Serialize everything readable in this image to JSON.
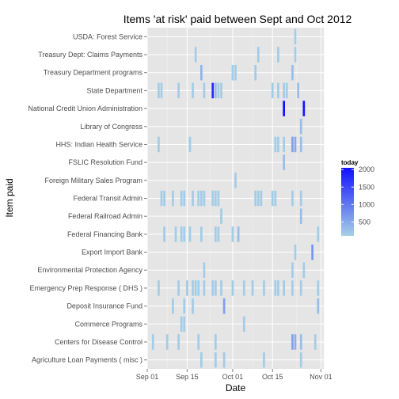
{
  "chart_data": {
    "type": "tile-heatmap",
    "title": "Items 'at risk' paid between Sept and Oct 2012",
    "xlabel": "Date",
    "ylabel": "Item paid",
    "x_range": [
      "2012-09-01",
      "2012-11-02"
    ],
    "x_ticks": [
      {
        "date": "2012-09-01",
        "label": "Sep 01"
      },
      {
        "date": "2012-09-15",
        "label": "Sep 15"
      },
      {
        "date": "2012-10-01",
        "label": "Oct 01"
      },
      {
        "date": "2012-10-15",
        "label": "Oct 15"
      },
      {
        "date": "2012-11-01",
        "label": "Nov 01"
      }
    ],
    "categories": [
      "USDA: Forest Service",
      "Treasury Dept: Claims Payments",
      "Treasury Department programs",
      "State Department",
      "National Credit Union Administration",
      "Library of Congress",
      "HHS: Indian Health Service",
      "FSLIC Resolution Fund",
      "Foreign Military Sales Program",
      "Federal Transit Admin",
      "Federal Railroad Admin",
      "Federal Financing Bank",
      "Export Import Bank",
      "Environmental Protection Agency",
      "Emergency Prep Response ( DHS )",
      "Deposit Insurance Fund",
      "Commerce Programs",
      "Centers for Disease Control",
      "Agriculture Loan Payments ( misc )"
    ],
    "legend": {
      "title": "today",
      "position": "right",
      "domain": [
        100,
        2050
      ],
      "breaks": [
        500,
        1000,
        1500,
        2000
      ],
      "low_color": "#a6d1e6",
      "high_color": "#1010ff"
    },
    "grid": true,
    "panel_color": "#e5e5e5",
    "points": [
      {
        "item": "USDA: Forest Service",
        "date": "2012-10-23",
        "today": 150
      },
      {
        "item": "Treasury Dept: Claims Payments",
        "date": "2012-09-18",
        "today": 150
      },
      {
        "item": "Treasury Dept: Claims Payments",
        "date": "2012-10-10",
        "today": 150
      },
      {
        "item": "Treasury Dept: Claims Payments",
        "date": "2012-10-17",
        "today": 150
      },
      {
        "item": "Treasury Dept: Claims Payments",
        "date": "2012-10-23",
        "today": 150
      },
      {
        "item": "Treasury Department programs",
        "date": "2012-09-20",
        "today": 400
      },
      {
        "item": "Treasury Department programs",
        "date": "2012-10-01",
        "today": 150
      },
      {
        "item": "Treasury Department programs",
        "date": "2012-10-02",
        "today": 150
      },
      {
        "item": "Treasury Department programs",
        "date": "2012-10-09",
        "today": 150
      },
      {
        "item": "Treasury Department programs",
        "date": "2012-10-22",
        "today": 300
      },
      {
        "item": "State Department",
        "date": "2012-09-05",
        "today": 150
      },
      {
        "item": "State Department",
        "date": "2012-09-06",
        "today": 150
      },
      {
        "item": "State Department",
        "date": "2012-09-12",
        "today": 150
      },
      {
        "item": "State Department",
        "date": "2012-09-17",
        "today": 150
      },
      {
        "item": "State Department",
        "date": "2012-09-21",
        "today": 150
      },
      {
        "item": "State Department",
        "date": "2012-09-24",
        "today": 1800
      },
      {
        "item": "State Department",
        "date": "2012-09-25",
        "today": 300
      },
      {
        "item": "State Department",
        "date": "2012-09-26",
        "today": 150
      },
      {
        "item": "State Department",
        "date": "2012-09-27",
        "today": 150
      },
      {
        "item": "State Department",
        "date": "2012-10-15",
        "today": 150
      },
      {
        "item": "State Department",
        "date": "2012-10-17",
        "today": 150
      },
      {
        "item": "State Department",
        "date": "2012-10-19",
        "today": 150
      },
      {
        "item": "State Department",
        "date": "2012-10-20",
        "today": 150
      },
      {
        "item": "State Department",
        "date": "2012-10-24",
        "today": 300
      },
      {
        "item": "National Credit Union Administration",
        "date": "2012-10-19",
        "today": 2050
      },
      {
        "item": "National Credit Union Administration",
        "date": "2012-10-26",
        "today": 2000
      },
      {
        "item": "Library of Congress",
        "date": "2012-10-25",
        "today": 300
      },
      {
        "item": "HHS: Indian Health Service",
        "date": "2012-09-05",
        "today": 150
      },
      {
        "item": "HHS: Indian Health Service",
        "date": "2012-09-16",
        "today": 150
      },
      {
        "item": "HHS: Indian Health Service",
        "date": "2012-10-16",
        "today": 150
      },
      {
        "item": "HHS: Indian Health Service",
        "date": "2012-10-17",
        "today": 150
      },
      {
        "item": "HHS: Indian Health Service",
        "date": "2012-10-19",
        "today": 150
      },
      {
        "item": "HHS: Indian Health Service",
        "date": "2012-10-22",
        "today": 600
      },
      {
        "item": "HHS: Indian Health Service",
        "date": "2012-10-23",
        "today": 500
      },
      {
        "item": "HHS: Indian Health Service",
        "date": "2012-10-25",
        "today": 300
      },
      {
        "item": "FSLIC Resolution Fund",
        "date": "2012-10-19",
        "today": 300
      },
      {
        "item": "Foreign Military Sales Program",
        "date": "2012-10-02",
        "today": 150
      },
      {
        "item": "Federal Transit Admin",
        "date": "2012-09-06",
        "today": 150
      },
      {
        "item": "Federal Transit Admin",
        "date": "2012-09-07",
        "today": 150
      },
      {
        "item": "Federal Transit Admin",
        "date": "2012-09-10",
        "today": 150
      },
      {
        "item": "Federal Transit Admin",
        "date": "2012-09-13",
        "today": 150
      },
      {
        "item": "Federal Transit Admin",
        "date": "2012-09-14",
        "today": 150
      },
      {
        "item": "Federal Transit Admin",
        "date": "2012-09-17",
        "today": 150
      },
      {
        "item": "Federal Transit Admin",
        "date": "2012-09-19",
        "today": 150
      },
      {
        "item": "Federal Transit Admin",
        "date": "2012-09-20",
        "today": 150
      },
      {
        "item": "Federal Transit Admin",
        "date": "2012-09-21",
        "today": 150
      },
      {
        "item": "Federal Transit Admin",
        "date": "2012-09-24",
        "today": 150
      },
      {
        "item": "Federal Transit Admin",
        "date": "2012-09-25",
        "today": 150
      },
      {
        "item": "Federal Transit Admin",
        "date": "2012-09-26",
        "today": 150
      },
      {
        "item": "Federal Transit Admin",
        "date": "2012-10-09",
        "today": 150
      },
      {
        "item": "Federal Transit Admin",
        "date": "2012-10-10",
        "today": 150
      },
      {
        "item": "Federal Transit Admin",
        "date": "2012-10-11",
        "today": 150
      },
      {
        "item": "Federal Transit Admin",
        "date": "2012-10-15",
        "today": 150
      },
      {
        "item": "Federal Transit Admin",
        "date": "2012-10-16",
        "today": 150
      },
      {
        "item": "Federal Transit Admin",
        "date": "2012-10-22",
        "today": 150
      },
      {
        "item": "Federal Transit Admin",
        "date": "2012-10-25",
        "today": 150
      },
      {
        "item": "Federal Railroad Admin",
        "date": "2012-09-27",
        "today": 150
      },
      {
        "item": "Federal Railroad Admin",
        "date": "2012-10-25",
        "today": 300
      },
      {
        "item": "Federal Financing Bank",
        "date": "2012-09-07",
        "today": 150
      },
      {
        "item": "Federal Financing Bank",
        "date": "2012-09-11",
        "today": 150
      },
      {
        "item": "Federal Financing Bank",
        "date": "2012-09-13",
        "today": 150
      },
      {
        "item": "Federal Financing Bank",
        "date": "2012-09-14",
        "today": 150
      },
      {
        "item": "Federal Financing Bank",
        "date": "2012-09-16",
        "today": 150
      },
      {
        "item": "Federal Financing Bank",
        "date": "2012-09-20",
        "today": 150
      },
      {
        "item": "Federal Financing Bank",
        "date": "2012-09-25",
        "today": 150
      },
      {
        "item": "Federal Financing Bank",
        "date": "2012-09-26",
        "today": 150
      },
      {
        "item": "Federal Financing Bank",
        "date": "2012-10-01",
        "today": 150
      },
      {
        "item": "Federal Financing Bank",
        "date": "2012-10-03",
        "today": 300
      },
      {
        "item": "Federal Financing Bank",
        "date": "2012-10-31",
        "today": 150
      },
      {
        "item": "Export Import Bank",
        "date": "2012-10-23",
        "today": 150
      },
      {
        "item": "Export Import Bank",
        "date": "2012-10-29",
        "today": 700
      },
      {
        "item": "Environmental Protection Agency",
        "date": "2012-09-21",
        "today": 150
      },
      {
        "item": "Environmental Protection Agency",
        "date": "2012-10-22",
        "today": 150
      },
      {
        "item": "Environmental Protection Agency",
        "date": "2012-10-26",
        "today": 150
      },
      {
        "item": "Emergency Prep Response ( DHS )",
        "date": "2012-09-05",
        "today": 150
      },
      {
        "item": "Emergency Prep Response ( DHS )",
        "date": "2012-09-12",
        "today": 150
      },
      {
        "item": "Emergency Prep Response ( DHS )",
        "date": "2012-09-15",
        "today": 150
      },
      {
        "item": "Emergency Prep Response ( DHS )",
        "date": "2012-09-17",
        "today": 150
      },
      {
        "item": "Emergency Prep Response ( DHS )",
        "date": "2012-09-18",
        "today": 150
      },
      {
        "item": "Emergency Prep Response ( DHS )",
        "date": "2012-09-19",
        "today": 150
      },
      {
        "item": "Emergency Prep Response ( DHS )",
        "date": "2012-09-21",
        "today": 150
      },
      {
        "item": "Emergency Prep Response ( DHS )",
        "date": "2012-09-24",
        "today": 150
      },
      {
        "item": "Emergency Prep Response ( DHS )",
        "date": "2012-09-25",
        "today": 150
      },
      {
        "item": "Emergency Prep Response ( DHS )",
        "date": "2012-09-27",
        "today": 150
      },
      {
        "item": "Emergency Prep Response ( DHS )",
        "date": "2012-10-01",
        "today": 150
      },
      {
        "item": "Emergency Prep Response ( DHS )",
        "date": "2012-10-05",
        "today": 150
      },
      {
        "item": "Emergency Prep Response ( DHS )",
        "date": "2012-10-08",
        "today": 150
      },
      {
        "item": "Emergency Prep Response ( DHS )",
        "date": "2012-10-12",
        "today": 150
      },
      {
        "item": "Emergency Prep Response ( DHS )",
        "date": "2012-10-16",
        "today": 150
      },
      {
        "item": "Emergency Prep Response ( DHS )",
        "date": "2012-10-17",
        "today": 150
      },
      {
        "item": "Emergency Prep Response ( DHS )",
        "date": "2012-10-19",
        "today": 150
      },
      {
        "item": "Emergency Prep Response ( DHS )",
        "date": "2012-10-22",
        "today": 150
      },
      {
        "item": "Emergency Prep Response ( DHS )",
        "date": "2012-10-25",
        "today": 150
      },
      {
        "item": "Emergency Prep Response ( DHS )",
        "date": "2012-10-31",
        "today": 150
      },
      {
        "item": "Deposit Insurance Fund",
        "date": "2012-09-10",
        "today": 150
      },
      {
        "item": "Deposit Insurance Fund",
        "date": "2012-09-14",
        "today": 150
      },
      {
        "item": "Deposit Insurance Fund",
        "date": "2012-09-17",
        "today": 150
      },
      {
        "item": "Deposit Insurance Fund",
        "date": "2012-09-28",
        "today": 600
      },
      {
        "item": "Deposit Insurance Fund",
        "date": "2012-10-31",
        "today": 300
      },
      {
        "item": "Commerce Programs",
        "date": "2012-09-13",
        "today": 150
      },
      {
        "item": "Commerce Programs",
        "date": "2012-09-14",
        "today": 150
      },
      {
        "item": "Commerce Programs",
        "date": "2012-10-05",
        "today": 150
      },
      {
        "item": "Centers for Disease Control",
        "date": "2012-09-03",
        "today": 150
      },
      {
        "item": "Centers for Disease Control",
        "date": "2012-09-08",
        "today": 150
      },
      {
        "item": "Centers for Disease Control",
        "date": "2012-09-12",
        "today": 150
      },
      {
        "item": "Centers for Disease Control",
        "date": "2012-09-19",
        "today": 150
      },
      {
        "item": "Centers for Disease Control",
        "date": "2012-09-25",
        "today": 150
      },
      {
        "item": "Centers for Disease Control",
        "date": "2012-10-22",
        "today": 600
      },
      {
        "item": "Centers for Disease Control",
        "date": "2012-10-23",
        "today": 450
      },
      {
        "item": "Centers for Disease Control",
        "date": "2012-10-25",
        "today": 300
      },
      {
        "item": "Centers for Disease Control",
        "date": "2012-10-30",
        "today": 150
      },
      {
        "item": "Agriculture Loan Payments ( misc )",
        "date": "2012-09-20",
        "today": 150
      },
      {
        "item": "Agriculture Loan Payments ( misc )",
        "date": "2012-09-25",
        "today": 150
      },
      {
        "item": "Agriculture Loan Payments ( misc )",
        "date": "2012-09-28",
        "today": 150
      },
      {
        "item": "Agriculture Loan Payments ( misc )",
        "date": "2012-10-12",
        "today": 150
      },
      {
        "item": "Agriculture Loan Payments ( misc )",
        "date": "2012-10-25",
        "today": 150
      }
    ]
  }
}
